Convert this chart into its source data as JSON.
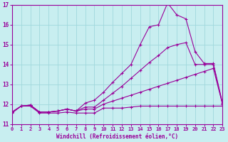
{
  "xlabel": "Windchill (Refroidissement éolien,°C)",
  "xlim": [
    0,
    23
  ],
  "ylim": [
    11,
    17
  ],
  "yticks": [
    11,
    12,
    13,
    14,
    15,
    16,
    17
  ],
  "xticks": [
    0,
    1,
    2,
    3,
    4,
    5,
    6,
    7,
    8,
    9,
    10,
    11,
    12,
    13,
    14,
    15,
    16,
    17,
    18,
    19,
    20,
    21,
    22,
    23
  ],
  "background_color": "#c8eef0",
  "grid_color": "#a0d8dc",
  "line_color": "#990099",
  "line1_y": [
    11.55,
    11.9,
    11.9,
    11.55,
    11.55,
    11.55,
    11.6,
    11.55,
    11.55,
    11.55,
    11.8,
    11.8,
    11.8,
    11.85,
    11.9,
    11.9,
    11.9,
    11.9,
    11.9,
    11.9,
    11.9,
    11.9,
    11.9,
    11.9
  ],
  "line2_y": [
    11.6,
    11.9,
    11.95,
    11.6,
    11.6,
    11.65,
    11.75,
    11.65,
    11.75,
    11.75,
    12.0,
    12.15,
    12.3,
    12.45,
    12.6,
    12.75,
    12.9,
    13.05,
    13.2,
    13.35,
    13.5,
    13.65,
    13.8,
    12.0
  ],
  "line3_y": [
    11.6,
    11.9,
    11.95,
    11.6,
    11.6,
    11.65,
    11.75,
    11.65,
    11.85,
    11.85,
    12.2,
    12.55,
    12.9,
    13.3,
    13.7,
    14.1,
    14.45,
    14.85,
    15.0,
    15.1,
    14.0,
    14.0,
    14.0,
    12.0
  ],
  "line4_y": [
    11.6,
    11.9,
    11.95,
    11.6,
    11.6,
    11.65,
    11.75,
    11.65,
    12.05,
    12.2,
    12.6,
    13.1,
    13.55,
    14.0,
    15.0,
    15.9,
    16.0,
    17.1,
    16.5,
    16.3,
    14.65,
    14.05,
    14.05,
    12.05
  ],
  "markersize": 3.5
}
